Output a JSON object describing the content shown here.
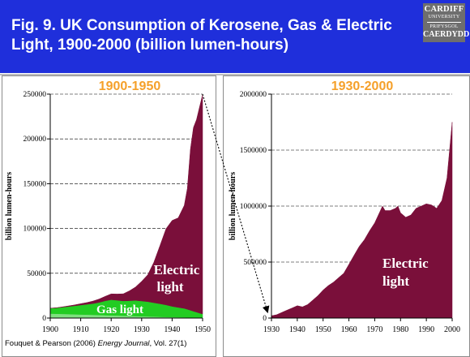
{
  "header": {
    "title": "Fig. 9. UK Consumption of Kerosene, Gas & Electric Light, 1900-2000 (billion lumen-hours)",
    "logo": {
      "line1": "CARDIFF",
      "line2": "UNIVERSITY",
      "line3": "PRIFYSGOL",
      "line4": "CAERDYDD"
    }
  },
  "colors": {
    "header_bg": "#1f2fdb",
    "electric": "#7a0f3a",
    "gas": "#22cc22",
    "kerosene": "#7fe07f",
    "panel_title": "#f5a02a"
  },
  "source_text": {
    "prefix": "Fouquet & Pearson (2006) ",
    "journal": "Energy Journal",
    "suffix": ", Vol. 27(1)"
  },
  "chart_data": [
    {
      "type": "area",
      "title": "1900-1950",
      "ylabel": "billion lumen-hours",
      "xlim": [
        1900,
        1950
      ],
      "ylim": [
        0,
        250000
      ],
      "xticks": [
        1900,
        1910,
        1920,
        1930,
        1940,
        1950
      ],
      "yticks": [
        0,
        50000,
        100000,
        150000,
        200000,
        250000
      ],
      "grid": true,
      "stacking": "stacked",
      "annotations": [
        {
          "text": "Electric light",
          "series": "Electric light"
        },
        {
          "text": "Gas light",
          "series": "Gas light"
        }
      ],
      "x": [
        1900,
        1902,
        1904,
        1906,
        1908,
        1910,
        1912,
        1914,
        1916,
        1918,
        1920,
        1922,
        1924,
        1926,
        1928,
        1930,
        1932,
        1934,
        1936,
        1938,
        1940,
        1942,
        1944,
        1945,
        1946,
        1947,
        1948,
        1949,
        1950
      ],
      "series": [
        {
          "name": "Kerosene light",
          "values": [
            5000,
            4800,
            4600,
            4400,
            4200,
            4000,
            3800,
            3600,
            3400,
            3200,
            3000,
            2800,
            2600,
            2400,
            2200,
            2000,
            1800,
            1600,
            1400,
            1200,
            1000,
            900,
            800,
            750,
            700,
            650,
            600,
            550,
            500
          ]
        },
        {
          "name": "Gas light",
          "values": [
            6000,
            6500,
            7500,
            8500,
            9500,
            10500,
            11500,
            12500,
            14000,
            16000,
            17500,
            17000,
            16500,
            17000,
            17500,
            17000,
            16500,
            15500,
            14500,
            13500,
            12000,
            11000,
            10000,
            9000,
            8000,
            7000,
            6000,
            5000,
            4000
          ]
        },
        {
          "name": "Electric light",
          "values": [
            0,
            200,
            400,
            700,
            1000,
            1500,
            2000,
            2800,
            3800,
            5000,
            6500,
            7000,
            8000,
            11000,
            15000,
            22000,
            30000,
            45000,
            65000,
            85000,
            96000,
            100000,
            115000,
            135000,
            180000,
            205000,
            215000,
            230000,
            245000
          ]
        }
      ]
    },
    {
      "type": "area",
      "title": "1930-2000",
      "ylabel": "billion lumen-hours",
      "xlim": [
        1930,
        2000
      ],
      "ylim": [
        0,
        2000000
      ],
      "xticks": [
        1930,
        1940,
        1950,
        1960,
        1970,
        1980,
        1990,
        2000
      ],
      "yticks": [
        0,
        500000,
        1000000,
        1500000,
        2000000
      ],
      "grid": true,
      "annotations": [
        {
          "text": "Electric light",
          "series": "Electric light"
        }
      ],
      "x": [
        1930,
        1932,
        1934,
        1936,
        1938,
        1940,
        1942,
        1944,
        1946,
        1948,
        1950,
        1952,
        1954,
        1956,
        1958,
        1960,
        1962,
        1964,
        1966,
        1968,
        1970,
        1972,
        1973,
        1974,
        1976,
        1978,
        1979,
        1980,
        1982,
        1984,
        1986,
        1988,
        1990,
        1992,
        1994,
        1996,
        1998,
        2000
      ],
      "series": [
        {
          "name": "Electric light",
          "values": [
            20000,
            30000,
            50000,
            70000,
            90000,
            110000,
            100000,
            120000,
            160000,
            200000,
            250000,
            290000,
            320000,
            360000,
            400000,
            480000,
            560000,
            640000,
            700000,
            780000,
            850000,
            950000,
            1000000,
            960000,
            960000,
            980000,
            1000000,
            940000,
            900000,
            920000,
            980000,
            1000000,
            1020000,
            1010000,
            980000,
            1050000,
            1250000,
            1750000
          ]
        }
      ]
    }
  ]
}
